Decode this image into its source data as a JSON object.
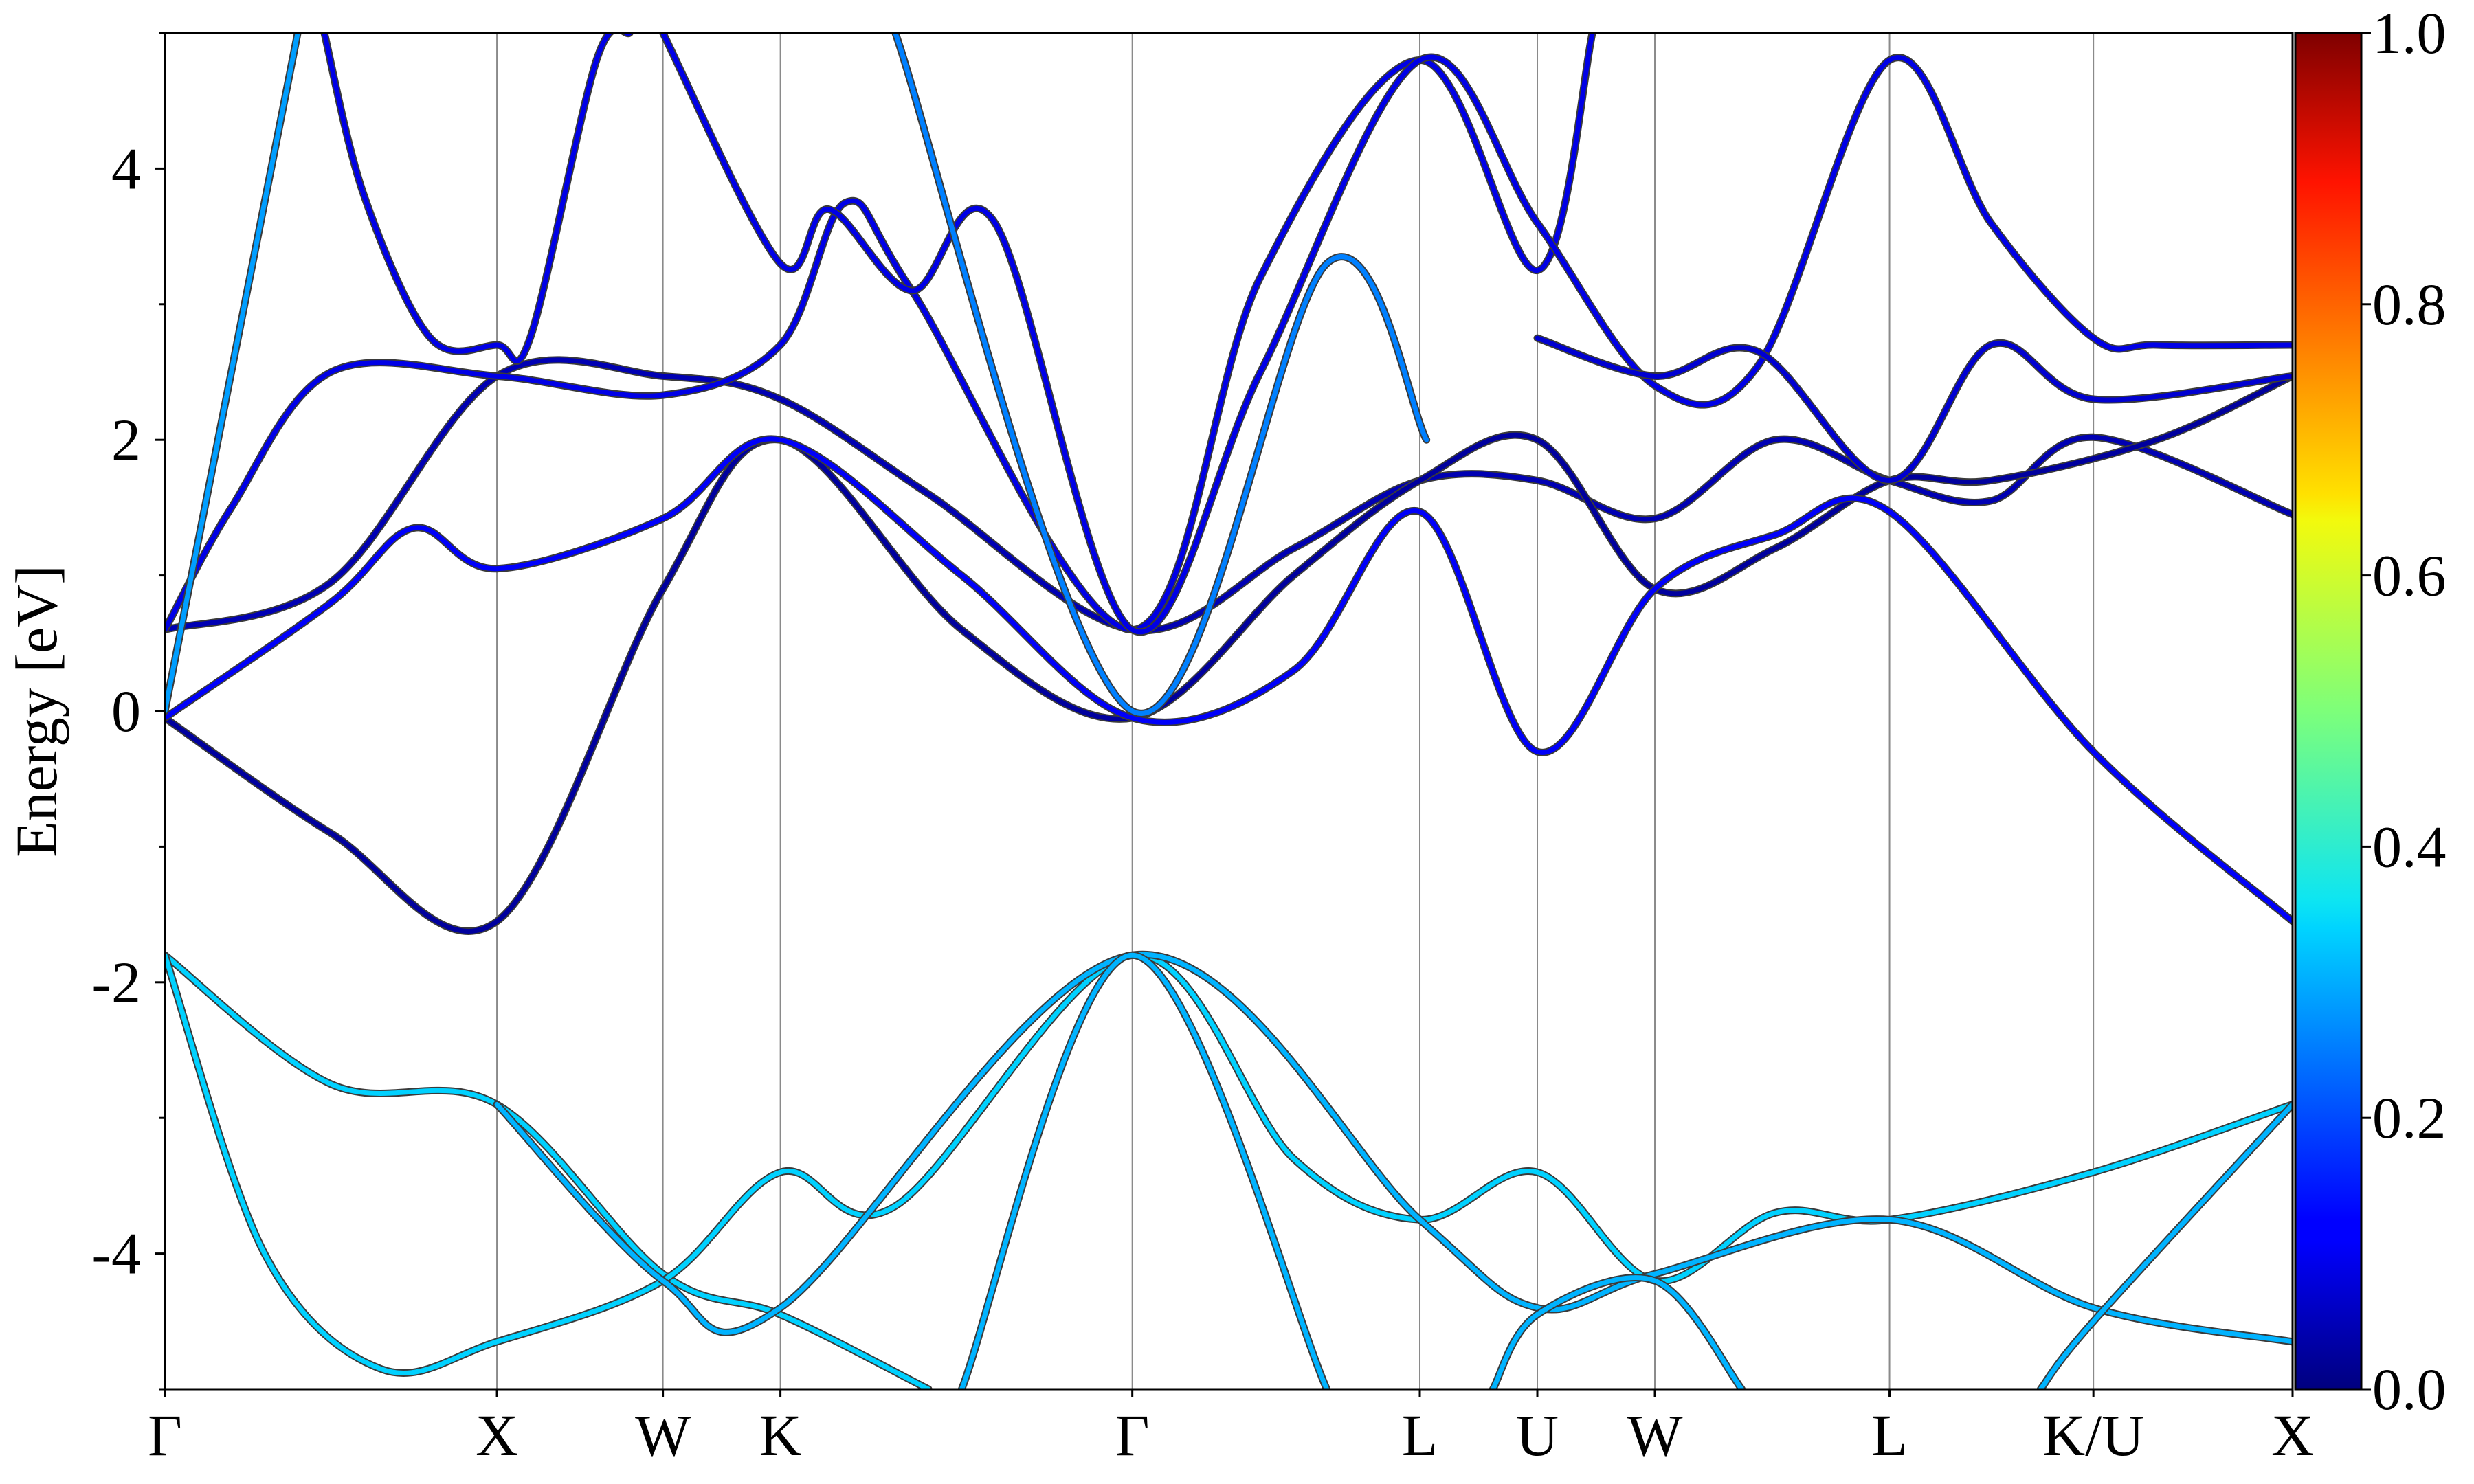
{
  "chart_data": {
    "type": "line",
    "title": "",
    "xlabel": "",
    "ylabel": "Energy [eV]",
    "ylim": [
      -5,
      5
    ],
    "y_ticks": [
      "-4",
      "-2",
      "0",
      "2",
      "4"
    ],
    "y_tick_values": [
      -4,
      -2,
      0,
      2,
      4
    ],
    "k_path": [
      "Γ",
      "X",
      "W",
      "K",
      "Γ",
      "L",
      "U",
      "W",
      "L",
      "K/U",
      "X"
    ],
    "k_path_positions": [
      0,
      1.0,
      1.5,
      1.854,
      2.914,
      3.78,
      4.134,
      4.488,
      5.195,
      5.809,
      6.409
    ],
    "colorbar": {
      "range": [
        0.0,
        1.0
      ],
      "ticks": [
        "0.0",
        "0.2",
        "0.4",
        "0.6",
        "0.8",
        "1.0"
      ],
      "tick_values": [
        0.0,
        0.2,
        0.4,
        0.6,
        0.8,
        1.0
      ],
      "colormap": "jet"
    },
    "series": [
      {
        "color_value": 0.05,
        "points": [
          [
            0,
            0.6
          ],
          [
            0.5,
            0.95
          ],
          [
            1.0,
            2.47
          ],
          [
            1.5,
            2.47
          ],
          [
            1.854,
            2.3
          ],
          [
            2.3,
            1.6
          ],
          [
            2.914,
            0.6
          ],
          [
            3.4,
            1.2
          ],
          [
            3.78,
            1.7
          ],
          [
            4.134,
            1.7
          ],
          [
            4.488,
            1.42
          ],
          [
            4.85,
            2.0
          ],
          [
            5.195,
            1.7
          ],
          [
            5.5,
            1.55
          ],
          [
            5.809,
            2.02
          ],
          [
            6.409,
            1.45
          ]
        ]
      },
      {
        "color_value": 0.03,
        "points": [
          [
            0,
            -0.05
          ],
          [
            0.5,
            -0.9
          ],
          [
            1.0,
            -1.55
          ],
          [
            1.5,
            0.9
          ],
          [
            1.854,
            2.0
          ],
          [
            2.4,
            0.6
          ],
          [
            2.914,
            -0.05
          ],
          [
            3.4,
            1.0
          ],
          [
            3.78,
            1.7
          ],
          [
            4.134,
            2.0
          ],
          [
            4.488,
            0.9
          ],
          [
            4.85,
            1.2
          ],
          [
            5.195,
            1.7
          ],
          [
            5.5,
            1.7
          ],
          [
            6.0,
            2.0
          ],
          [
            6.409,
            2.47
          ]
        ]
      },
      {
        "color_value": 0.12,
        "points": [
          [
            0,
            -0.05
          ],
          [
            0.5,
            0.8
          ],
          [
            0.75,
            1.35
          ],
          [
            1.0,
            1.05
          ],
          [
            1.5,
            1.42
          ],
          [
            1.854,
            2.0
          ],
          [
            2.4,
            1.0
          ],
          [
            2.914,
            -0.05
          ],
          [
            3.4,
            0.3
          ],
          [
            3.78,
            1.47
          ],
          [
            4.134,
            -0.3
          ],
          [
            4.488,
            0.9
          ],
          [
            4.85,
            1.3
          ],
          [
            5.195,
            1.47
          ],
          [
            5.809,
            -0.3
          ],
          [
            6.409,
            -1.55
          ]
        ]
      },
      {
        "color_value": 0.1,
        "points": [
          [
            0,
            0.6
          ],
          [
            0.2,
            1.5
          ],
          [
            0.5,
            2.5
          ],
          [
            1.0,
            2.47
          ],
          [
            1.5,
            2.33
          ],
          [
            1.854,
            2.7
          ],
          [
            2.05,
            3.75
          ],
          [
            2.25,
            3.1
          ],
          [
            2.914,
            0.6
          ],
          [
            3.3,
            3.2
          ],
          [
            3.78,
            4.8
          ],
          [
            4.134,
            3.25
          ],
          [
            4.3,
            5.0
          ]
        ]
      },
      {
        "color_value": 0.1,
        "points": [
          [
            0.48,
            5.0
          ],
          [
            0.6,
            3.8
          ],
          [
            0.8,
            2.75
          ],
          [
            1.0,
            2.7
          ],
          [
            1.1,
            2.75
          ],
          [
            1.3,
            4.8
          ],
          [
            1.4,
            5.0
          ]
        ]
      },
      {
        "color_value": 0.1,
        "points": [
          [
            1.5,
            5.0
          ],
          [
            1.854,
            3.3
          ],
          [
            2.0,
            3.7
          ],
          [
            2.25,
            3.1
          ],
          [
            2.5,
            3.6
          ],
          [
            2.914,
            0.6
          ],
          [
            3.3,
            2.5
          ],
          [
            3.78,
            4.8
          ],
          [
            4.134,
            3.6
          ],
          [
            4.488,
            2.4
          ],
          [
            4.8,
            2.55
          ],
          [
            5.195,
            4.8
          ],
          [
            5.5,
            3.6
          ],
          [
            5.809,
            2.75
          ],
          [
            6.0,
            2.7
          ],
          [
            6.409,
            2.7
          ]
        ]
      },
      {
        "color_value": 0.08,
        "points": [
          [
            4.134,
            2.75
          ],
          [
            4.488,
            2.47
          ],
          [
            4.8,
            2.65
          ],
          [
            5.195,
            1.7
          ],
          [
            5.5,
            2.7
          ],
          [
            5.809,
            2.3
          ],
          [
            6.409,
            2.47
          ]
        ]
      },
      {
        "color_value": 0.28,
        "points": [
          [
            0,
            0.0
          ],
          [
            0.4,
            5.0
          ]
        ]
      },
      {
        "color_value": 0.25,
        "points": [
          [
            2.2,
            5.0
          ],
          [
            2.914,
            0.0
          ],
          [
            3.5,
            3.3
          ],
          [
            3.8,
            2.0
          ]
        ]
      },
      {
        "color_value": 0.33,
        "points": [
          [
            0,
            -1.8
          ],
          [
            0.5,
            -2.75
          ],
          [
            1.0,
            -2.9
          ],
          [
            1.5,
            -4.15
          ],
          [
            1.854,
            -4.45
          ],
          [
            2.3,
            -5.0
          ]
        ]
      },
      {
        "color_value": 0.33,
        "points": [
          [
            0,
            -1.8
          ],
          [
            0.3,
            -4.0
          ],
          [
            0.65,
            -4.85
          ],
          [
            1.0,
            -4.65
          ],
          [
            1.5,
            -4.2
          ],
          [
            1.854,
            -3.4
          ],
          [
            2.2,
            -3.65
          ],
          [
            2.914,
            -1.8
          ],
          [
            3.4,
            -3.3
          ],
          [
            3.78,
            -3.75
          ],
          [
            4.134,
            -3.4
          ],
          [
            4.488,
            -4.2
          ],
          [
            4.85,
            -3.7
          ],
          [
            5.195,
            -3.75
          ],
          [
            5.809,
            -3.4
          ],
          [
            6.409,
            -2.9
          ]
        ]
      },
      {
        "color_value": 0.3,
        "points": [
          [
            1.0,
            -2.9
          ],
          [
            1.5,
            -4.2
          ],
          [
            1.854,
            -4.4
          ],
          [
            2.914,
            -1.8
          ],
          [
            3.78,
            -3.75
          ],
          [
            4.134,
            -4.4
          ],
          [
            4.488,
            -4.15
          ],
          [
            5.195,
            -3.75
          ],
          [
            5.809,
            -4.4
          ],
          [
            6.409,
            -4.65
          ]
        ]
      },
      {
        "color_value": 0.3,
        "points": [
          [
            2.4,
            -5.0
          ],
          [
            2.914,
            -1.8
          ],
          [
            3.5,
            -5.0
          ]
        ]
      },
      {
        "color_value": 0.3,
        "points": [
          [
            4.0,
            -5.0
          ],
          [
            4.134,
            -4.45
          ],
          [
            4.488,
            -4.2
          ],
          [
            4.75,
            -5.0
          ]
        ]
      },
      {
        "color_value": 0.3,
        "points": [
          [
            5.65,
            -5.0
          ],
          [
            5.809,
            -4.5
          ],
          [
            6.409,
            -2.9
          ]
        ]
      }
    ]
  }
}
